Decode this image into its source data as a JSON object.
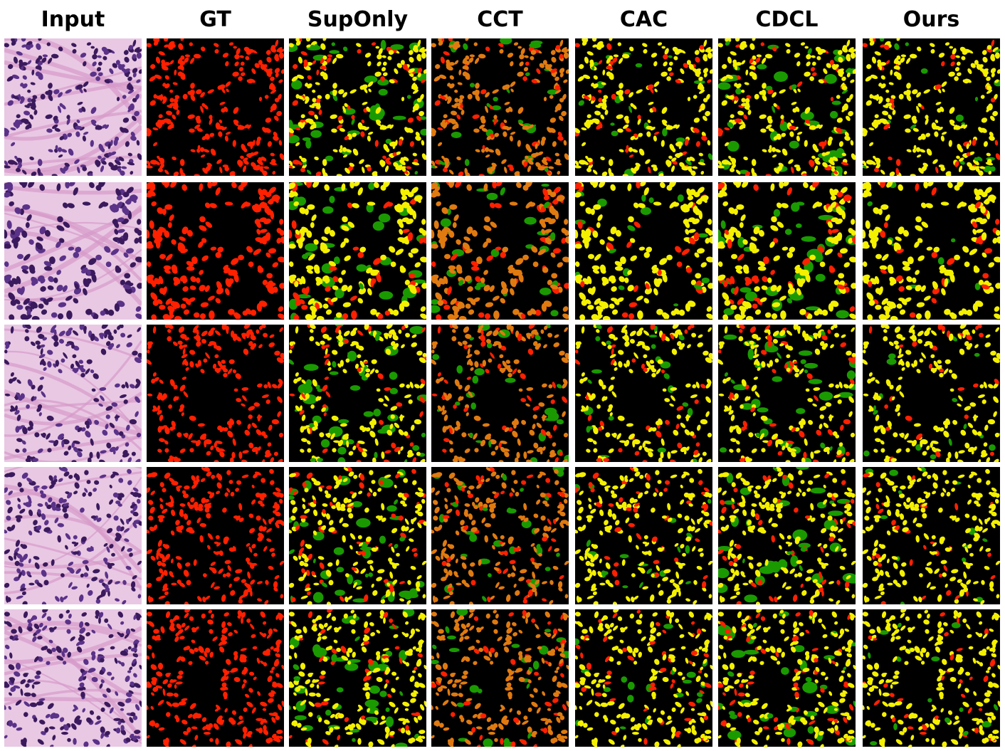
{
  "figure": {
    "columns": [
      "Input",
      "GT",
      "SupOnly",
      "CCT",
      "CAC",
      "CDCL",
      "Ours"
    ],
    "row_count": 5
  },
  "legend_colors": {
    "background": "#000000",
    "ground_truth_nuclei": "#ff2000",
    "correct_overlap": "#f4f000",
    "false_positive": "#1a9a00",
    "cct_overlap": "#e07a10",
    "he_background": "#e9c8e4",
    "he_nuclei": "#3a1a5c"
  }
}
